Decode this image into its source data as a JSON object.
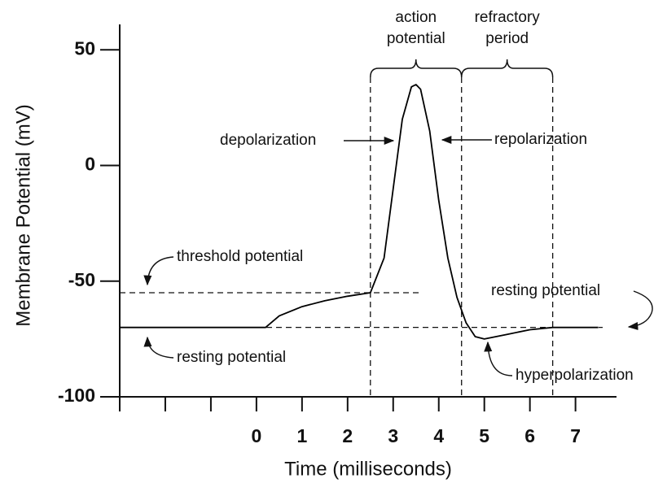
{
  "chart_data": {
    "type": "line",
    "x_label": "Time (milliseconds)",
    "y_label": "Membrane Potential (mV)",
    "x": [
      -3,
      0.2,
      0.5,
      1,
      1.5,
      2,
      2.5,
      2.8,
      3.0,
      3.2,
      3.4,
      3.5,
      3.6,
      3.8,
      4.0,
      4.2,
      4.4,
      4.6,
      4.8,
      5.0,
      5.5,
      6.0,
      6.5,
      7.5
    ],
    "series": [
      {
        "color": "#000000",
        "values": [
          -70,
          -70,
          -65,
          -61,
          -58.5,
          -56.5,
          -55,
          -40,
          -10,
          20,
          34,
          35,
          33,
          15,
          -15,
          -40,
          -57,
          -68,
          -74,
          -75,
          -73,
          -71,
          -70,
          -70
        ]
      }
    ],
    "xlim": [
      -3,
      7.9
    ],
    "ylim": [
      -100,
      61
    ],
    "xticks": [
      0,
      1,
      2,
      3,
      4,
      5,
      6,
      7
    ],
    "xticks_unlabeled": [
      -3,
      -2,
      -1
    ],
    "yticks": [
      50,
      0,
      -50,
      -100
    ],
    "threshold": -55,
    "resting": -70,
    "vlines": [
      2.5,
      4.5,
      6.5
    ],
    "brackets": [
      {
        "label": [
          "action",
          "potential"
        ],
        "x": [
          2.5,
          4.5
        ]
      },
      {
        "label": [
          "refractory",
          "period"
        ],
        "x": [
          4.5,
          6.5
        ]
      }
    ],
    "annotations": [
      "depolarization",
      "repolarization",
      "threshold potential",
      "resting potential",
      "resting potential",
      "hyperpolarization"
    ]
  }
}
